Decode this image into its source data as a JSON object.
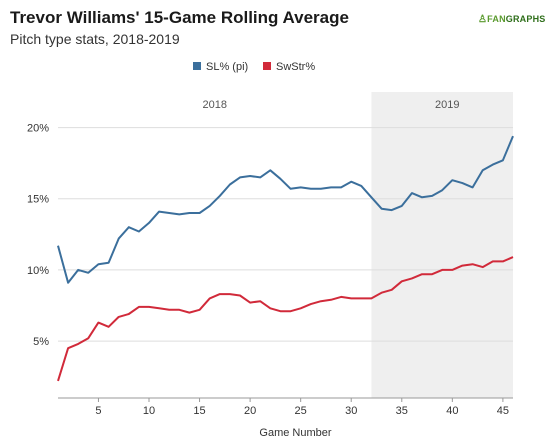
{
  "title": "Trevor Williams' 15-Game Rolling Average",
  "subtitle": "Pitch type stats, 2018-2019",
  "brand": {
    "mark": "♙",
    "text_a": "FAN",
    "text_b": "GRAPHS",
    "color": "#5a9a2e"
  },
  "chart_data": {
    "type": "line",
    "xlabel": "Game Number",
    "ylabel": "",
    "xlim": [
      1,
      46
    ],
    "ylim": [
      0.01,
      0.225
    ],
    "x_ticks": [
      5,
      10,
      15,
      20,
      25,
      30,
      35,
      40,
      45
    ],
    "y_ticks": [
      0.05,
      0.1,
      0.15,
      0.2
    ],
    "y_tick_labels": [
      "5%",
      "10%",
      "15%",
      "20%"
    ],
    "grid": "horizontal",
    "legend": "top-center",
    "regions": [
      {
        "label": "2018",
        "x_start": 1,
        "x_end": 32,
        "label_x": 16.5,
        "shaded": false
      },
      {
        "label": "2019",
        "x_start": 32,
        "x_end": 46,
        "label_x": 39.5,
        "shaded": true,
        "color": "#efefef"
      }
    ],
    "x": [
      1,
      2,
      3,
      4,
      5,
      6,
      7,
      8,
      9,
      10,
      11,
      12,
      13,
      14,
      15,
      16,
      17,
      18,
      19,
      20,
      21,
      22,
      23,
      24,
      25,
      26,
      27,
      28,
      29,
      30,
      31,
      32,
      33,
      34,
      35,
      36,
      37,
      38,
      39,
      40,
      41,
      42,
      43,
      44,
      45,
      46
    ],
    "series": [
      {
        "name": "SL% (pi)",
        "color": "#3b6f9c",
        "values": [
          0.117,
          0.091,
          0.1,
          0.098,
          0.104,
          0.105,
          0.122,
          0.13,
          0.127,
          0.133,
          0.141,
          0.14,
          0.139,
          0.14,
          0.14,
          0.145,
          0.152,
          0.16,
          0.165,
          0.166,
          0.165,
          0.17,
          0.164,
          0.157,
          0.158,
          0.157,
          0.157,
          0.158,
          0.158,
          0.162,
          0.159,
          0.151,
          0.143,
          0.142,
          0.145,
          0.154,
          0.151,
          0.152,
          0.156,
          0.163,
          0.161,
          0.158,
          0.17,
          0.174,
          0.177,
          0.194
        ]
      },
      {
        "name": "SwStr%",
        "color": "#d12a3a",
        "values": [
          0.022,
          0.045,
          0.048,
          0.052,
          0.063,
          0.06,
          0.067,
          0.069,
          0.074,
          0.074,
          0.073,
          0.072,
          0.072,
          0.07,
          0.072,
          0.08,
          0.083,
          0.083,
          0.082,
          0.077,
          0.078,
          0.073,
          0.071,
          0.071,
          0.073,
          0.076,
          0.078,
          0.079,
          0.081,
          0.08,
          0.08,
          0.08,
          0.084,
          0.086,
          0.092,
          0.094,
          0.097,
          0.097,
          0.1,
          0.1,
          0.103,
          0.104,
          0.102,
          0.106,
          0.106,
          0.109
        ]
      }
    ]
  }
}
